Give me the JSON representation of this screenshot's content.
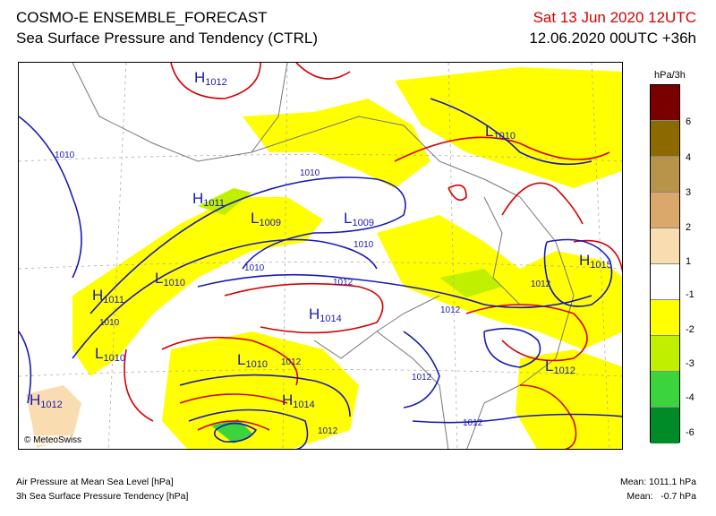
{
  "header": {
    "title": "COSMO-E ENSEMBLE_FORECAST",
    "subtitle": "Sea Surface Pressure and Tendency (CTRL)",
    "valid_time": "Sat 13 Jun 2020 12UTC",
    "run_time": "12.06.2020 00UTC +36h"
  },
  "map": {
    "credit": "© MeteoSwiss",
    "isobar_labels": [
      "1010",
      "1010",
      "1010",
      "1010",
      "1010",
      "1012",
      "1012",
      "1012",
      "1012",
      "1012",
      "1012",
      "1012"
    ],
    "pressure_systems": [
      {
        "type": "H",
        "value": "1012"
      },
      {
        "type": "L",
        "value": "1010"
      },
      {
        "type": "H",
        "value": "1011"
      },
      {
        "type": "L",
        "value": "1009"
      },
      {
        "type": "L",
        "value": "1009"
      },
      {
        "type": "H",
        "value": "1011"
      },
      {
        "type": "L",
        "value": "1010"
      },
      {
        "type": "H",
        "value": "1015"
      },
      {
        "type": "H",
        "value": "1014"
      },
      {
        "type": "L",
        "value": "1010"
      },
      {
        "type": "L",
        "value": "1010"
      },
      {
        "type": "L",
        "value": "1012"
      },
      {
        "type": "H",
        "value": "1014"
      },
      {
        "type": "H",
        "value": "1012"
      }
    ],
    "colors": {
      "isobar": "#1a1ab4",
      "isobar_high": "#d40000",
      "border": "#777777",
      "frame": "#000000"
    }
  },
  "legend": {
    "title": "hPa/3h",
    "ticks": [
      "6",
      "4",
      "3",
      "2",
      "1",
      "-1",
      "-2",
      "-3",
      "-4",
      "-6"
    ],
    "colors": [
      "#7a0000",
      "#8c6a00",
      "#b8944a",
      "#d9a86a",
      "#f9ddb0",
      "#ffffff",
      "#ffff00",
      "#bff000",
      "#3cd43c",
      "#0aa00a",
      "#008a28"
    ]
  },
  "footer": {
    "left_line1": "Air Pressure at Mean Sea Level [hPa]",
    "left_line2": "3h Sea Surface Pressure Tendency [hPa]",
    "right_line1": "Mean: 1011.1 hPa",
    "right_line2": "Mean:   -0.7 hPa"
  }
}
